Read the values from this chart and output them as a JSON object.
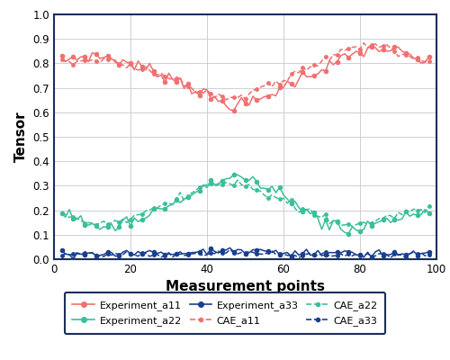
{
  "xlabel": "Measurement points",
  "ylabel": "Tensor",
  "xlim": [
    0,
    100
  ],
  "ylim": [
    0,
    1
  ],
  "yticks": [
    0,
    0.1,
    0.2,
    0.3,
    0.4,
    0.5,
    0.6,
    0.7,
    0.8,
    0.9,
    1
  ],
  "xticks": [
    0,
    20,
    40,
    60,
    80,
    100
  ],
  "color_a11": "#f07070",
  "color_a22": "#3bbf9a",
  "color_a33": "#1a3f8f",
  "spine_color": "#1a2e5a",
  "figsize": [
    5.0,
    4.0
  ],
  "dpi": 100
}
